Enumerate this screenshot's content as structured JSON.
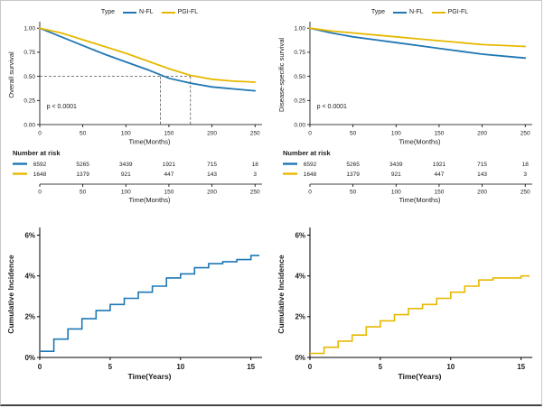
{
  "colors": {
    "blue": "#1F77B4",
    "gold": "#E7B800",
    "axis": "#000000",
    "dash_line": "#555555",
    "text": "#1A1A1A",
    "border": "#C8C8C8"
  },
  "legend": {
    "title": "Type",
    "items": [
      {
        "label": "N-FL",
        "color": "#1F77B4"
      },
      {
        "label": "PGI-FL",
        "color": "#E7B800"
      }
    ]
  },
  "chart_data": [
    {
      "id": "overall-survival",
      "type": "line",
      "kind": "km",
      "title": "",
      "ylabel": "Overall survival",
      "xlabel": "Time(Months)",
      "annotation": "p < 0.0001",
      "legend_position": "top",
      "grid": false,
      "xlim": [
        0,
        255
      ],
      "ylim": [
        0,
        1.03
      ],
      "xticks": [
        0,
        50,
        100,
        150,
        200,
        250
      ],
      "yticks": [
        0,
        0.25,
        0.5,
        0.75,
        1
      ],
      "ytick_labels": [
        "0.00",
        "0.25",
        "0.50",
        "0.75",
        "1.00"
      ],
      "median_dash": {
        "y": 0.5,
        "xs": [
          140,
          175
        ]
      },
      "series": [
        {
          "name": "N-FL",
          "color": "#1F77B4",
          "x": [
            0,
            25,
            50,
            75,
            100,
            125,
            150,
            175,
            200,
            225,
            250
          ],
          "y": [
            1.0,
            0.91,
            0.82,
            0.73,
            0.65,
            0.57,
            0.48,
            0.43,
            0.39,
            0.37,
            0.35
          ]
        },
        {
          "name": "PGI-FL",
          "color": "#E7B800",
          "x": [
            0,
            25,
            50,
            75,
            100,
            125,
            150,
            175,
            200,
            225,
            250
          ],
          "y": [
            1.0,
            0.95,
            0.88,
            0.81,
            0.74,
            0.66,
            0.58,
            0.51,
            0.47,
            0.45,
            0.44
          ]
        }
      ],
      "risk": {
        "title": "Number at risk",
        "xlabel": "Time(Months)",
        "rows": [
          {
            "name": "N-FL",
            "color": "#1F77B4",
            "values": [
              "6592",
              "5265",
              "3439",
              "1921",
              "715",
              "18"
            ]
          },
          {
            "name": "PGI-FL",
            "color": "#E7B800",
            "values": [
              "1648",
              "1379",
              "921",
              "447",
              "143",
              "3"
            ]
          }
        ]
      }
    },
    {
      "id": "disease-specific-survival",
      "type": "line",
      "kind": "km",
      "title": "",
      "ylabel": "Disease-specific survival",
      "xlabel": "Time(Months)",
      "annotation": "p < 0.0001",
      "legend_position": "top",
      "grid": false,
      "xlim": [
        0,
        255
      ],
      "ylim": [
        0,
        1.03
      ],
      "xticks": [
        0,
        50,
        100,
        150,
        200,
        250
      ],
      "yticks": [
        0,
        0.25,
        0.5,
        0.75,
        1
      ],
      "ytick_labels": [
        "0.00",
        "0.25",
        "0.50",
        "0.75",
        "1.00"
      ],
      "series": [
        {
          "name": "N-FL",
          "color": "#1F77B4",
          "x": [
            0,
            25,
            50,
            75,
            100,
            125,
            150,
            175,
            200,
            225,
            250
          ],
          "y": [
            1.0,
            0.95,
            0.91,
            0.88,
            0.85,
            0.82,
            0.79,
            0.76,
            0.73,
            0.71,
            0.69
          ]
        },
        {
          "name": "PGI-FL",
          "color": "#E7B800",
          "x": [
            0,
            25,
            50,
            75,
            100,
            125,
            150,
            175,
            200,
            225,
            250
          ],
          "y": [
            1.0,
            0.97,
            0.95,
            0.93,
            0.91,
            0.89,
            0.87,
            0.85,
            0.83,
            0.82,
            0.81
          ]
        }
      ],
      "risk": {
        "title": "Number at risk",
        "xlabel": "Time(Months)",
        "rows": [
          {
            "name": "N-FL",
            "color": "#1F77B4",
            "values": [
              "6592",
              "5265",
              "3439",
              "1921",
              "715",
              "18"
            ]
          },
          {
            "name": "PGI-FL",
            "color": "#E7B800",
            "values": [
              "1648",
              "1379",
              "921",
              "447",
              "143",
              "3"
            ]
          }
        ]
      }
    },
    {
      "id": "cumulative-incidence-nfl",
      "type": "line",
      "kind": "step",
      "title": "",
      "ylabel": "Cumulative Incidence",
      "xlabel": "Time(Years)",
      "grid": false,
      "xlim": [
        0,
        15.6
      ],
      "ylim": [
        0,
        6.2
      ],
      "xticks": [
        0,
        5,
        10,
        15
      ],
      "yticks": [
        0,
        2,
        4,
        6
      ],
      "ytick_labels": [
        "0%",
        "2%",
        "4%",
        "6%"
      ],
      "series": [
        {
          "name": "N-FL",
          "color": "#1F77B4",
          "x": [
            0,
            1,
            2,
            3,
            4,
            5,
            6,
            7,
            8,
            9,
            10,
            11,
            12,
            13,
            14,
            15
          ],
          "y": [
            0.3,
            0.9,
            1.4,
            1.9,
            2.3,
            2.6,
            2.9,
            3.2,
            3.5,
            3.9,
            4.1,
            4.4,
            4.6,
            4.7,
            4.8,
            5.0
          ]
        }
      ]
    },
    {
      "id": "cumulative-incidence-pgifl",
      "type": "line",
      "kind": "step",
      "title": "",
      "ylabel": "Cumulative Incidence",
      "xlabel": "Time(Years)",
      "grid": false,
      "xlim": [
        0,
        15.6
      ],
      "ylim": [
        0,
        6.2
      ],
      "xticks": [
        0,
        5,
        10,
        15
      ],
      "yticks": [
        0,
        2,
        4,
        6
      ],
      "ytick_labels": [
        "0%",
        "2%",
        "4%",
        "6%"
      ],
      "series": [
        {
          "name": "PGI-FL",
          "color": "#E7B800",
          "x": [
            0,
            1,
            2,
            3,
            4,
            5,
            6,
            7,
            8,
            9,
            10,
            11,
            12,
            13,
            14,
            15
          ],
          "y": [
            0.2,
            0.5,
            0.8,
            1.1,
            1.5,
            1.8,
            2.1,
            2.4,
            2.6,
            2.9,
            3.2,
            3.5,
            3.8,
            3.9,
            3.9,
            4.0
          ]
        }
      ]
    }
  ]
}
